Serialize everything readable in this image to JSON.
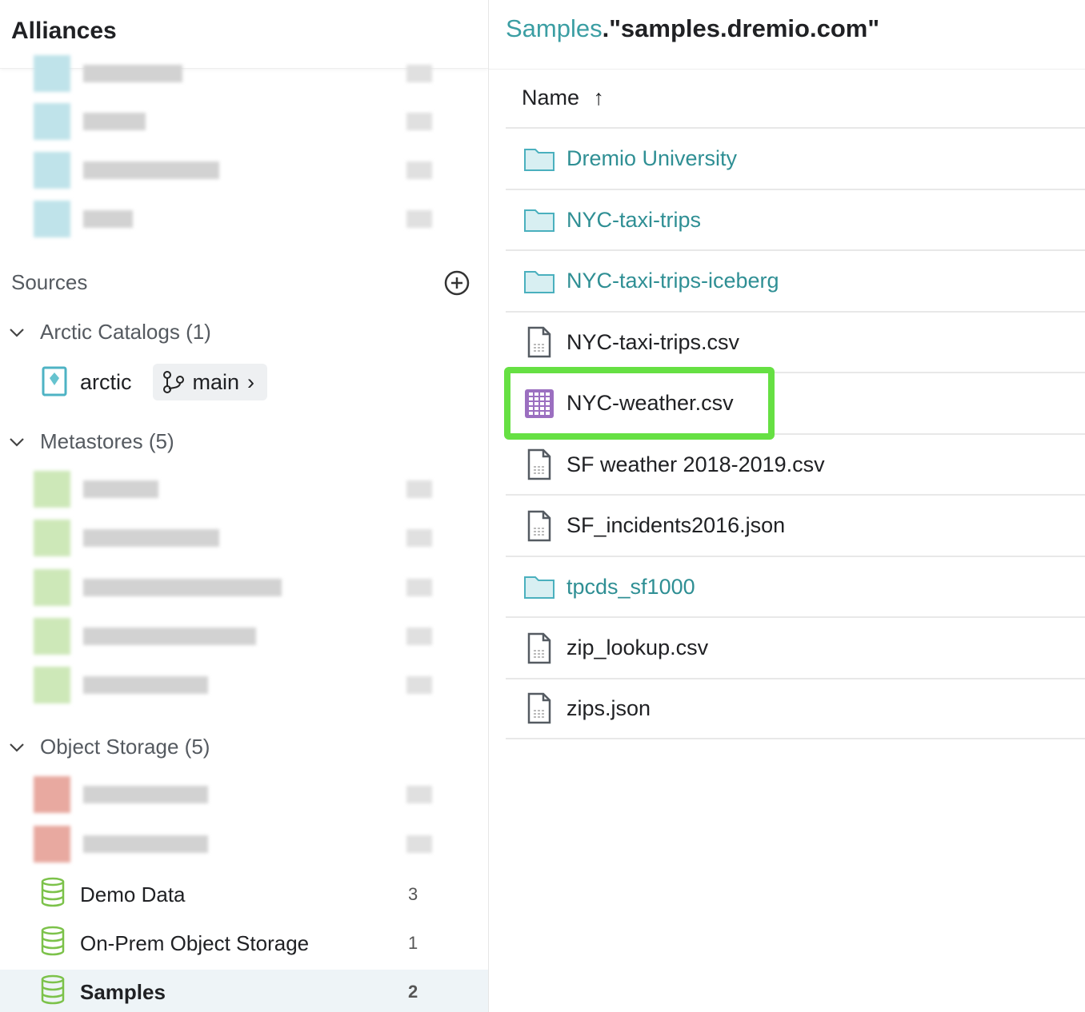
{
  "left": {
    "title": "Alliances",
    "sources_label": "Sources",
    "arctic_group": "Arctic Catalogs (1)",
    "arctic_item": "arctic",
    "branch": "main",
    "metastores_group": "Metastores (5)",
    "object_storage_group": "Object Storage (5)",
    "sources": [
      {
        "name": "Demo Data",
        "count": "3"
      },
      {
        "name": "On-Prem Object Storage",
        "count": "1"
      },
      {
        "name": "Samples",
        "count": "2",
        "selected": true
      }
    ]
  },
  "right": {
    "breadcrumb_link": "Samples",
    "breadcrumb_current": ".\"samples.dremio.com\"",
    "column": "Name",
    "sort_icon": "arrow-up",
    "rows": [
      {
        "name": "Dremio University",
        "type": "folder"
      },
      {
        "name": "NYC-taxi-trips",
        "type": "folder"
      },
      {
        "name": "NYC-taxi-trips-iceberg",
        "type": "folder"
      },
      {
        "name": "NYC-taxi-trips.csv",
        "type": "file"
      },
      {
        "name": "NYC-weather.csv",
        "type": "dataset",
        "highlighted": true
      },
      {
        "name": "SF weather 2018-2019.csv",
        "type": "file"
      },
      {
        "name": "SF_incidents2016.json",
        "type": "file"
      },
      {
        "name": "tpcds_sf1000",
        "type": "folder"
      },
      {
        "name": "zip_lookup.csv",
        "type": "file"
      },
      {
        "name": "zips.json",
        "type": "file"
      }
    ]
  },
  "colors": {
    "accent": "#3b9ea3",
    "highlight": "#66e043",
    "dataset": "#9b6fc0",
    "selected_bg": "#eef4f7"
  }
}
